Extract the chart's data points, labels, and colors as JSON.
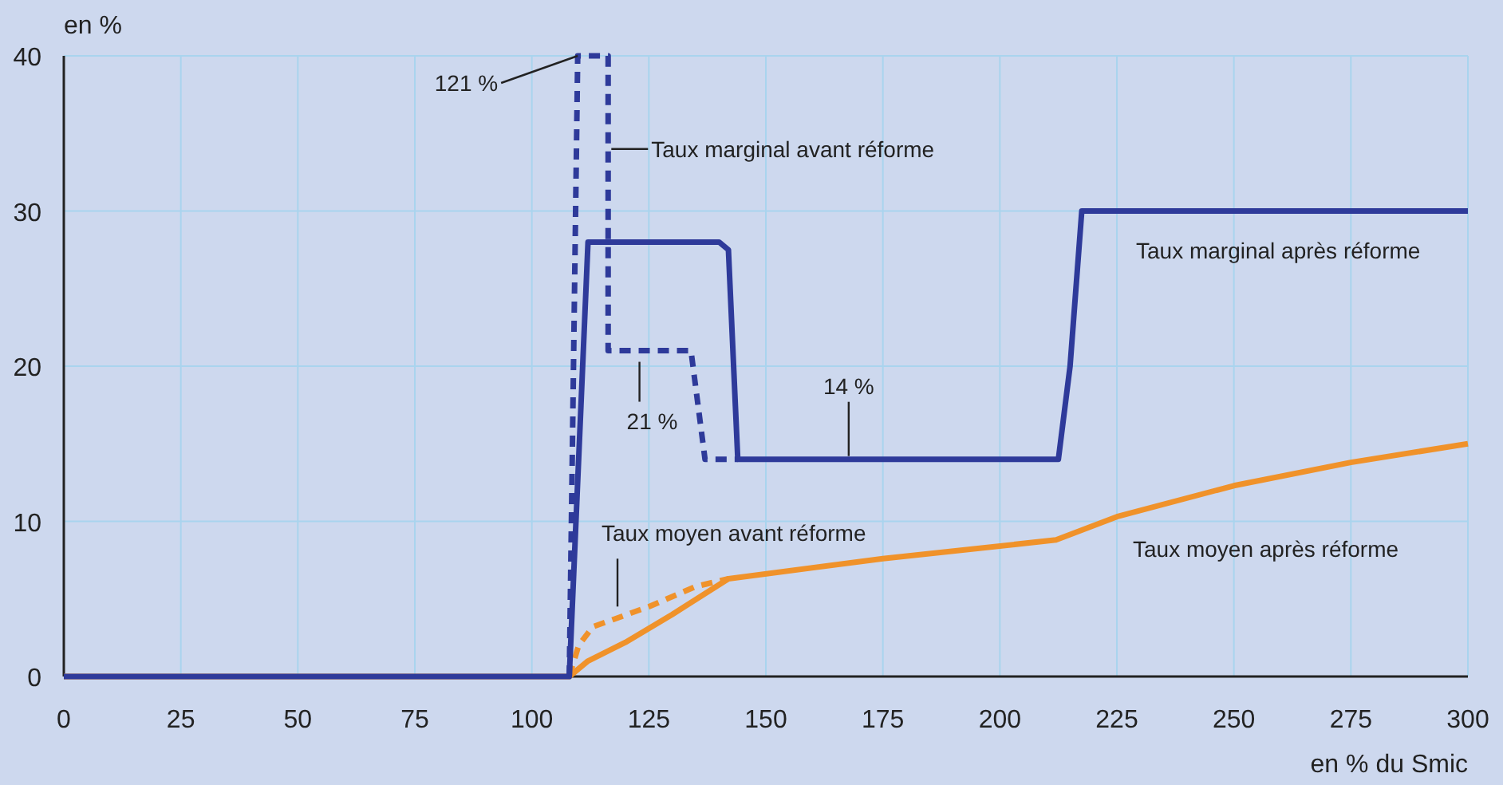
{
  "chart_data": {
    "type": "line",
    "xlabel": "en % du Smic",
    "ylabel": "en %",
    "xlim": [
      0,
      300
    ],
    "ylim": [
      0,
      40
    ],
    "xticks": [
      0,
      25,
      50,
      75,
      100,
      125,
      150,
      175,
      200,
      225,
      250,
      275,
      300
    ],
    "yticks": [
      0,
      10,
      20,
      30,
      40
    ],
    "grid": true,
    "marker": "none",
    "series": [
      {
        "color": "#f0922a",
        "line_style": "solid",
        "x": [
          0,
          108,
          112,
          120,
          130,
          142,
          175,
          212,
          225,
          250,
          275,
          300
        ],
        "values": [
          0,
          0,
          1,
          2.2,
          4,
          6.3,
          7.6,
          8.8,
          10.3,
          12.3,
          13.8,
          15
        ]
      },
      {
        "color": "#f0922a",
        "line_style": "dashed",
        "x": [
          108,
          110,
          113,
          125,
          135,
          142
        ],
        "values": [
          0,
          2,
          3.2,
          4.5,
          5.8,
          6.3
        ]
      },
      {
        "color": "#2e3a9a",
        "line_style": "dashed",
        "x": [
          108,
          109.8,
          116.3,
          116.3,
          134,
          137,
          144
        ],
        "values": [
          0,
          40,
          40,
          21,
          21,
          14,
          14
        ]
      },
      {
        "color": "#2e3a9a",
        "line_style": "solid",
        "x": [
          0,
          108,
          112,
          140,
          142,
          144,
          212.5,
          215,
          217.5,
          300
        ],
        "values": [
          0,
          0,
          28,
          28,
          27.5,
          14,
          14,
          20,
          30,
          30
        ]
      }
    ],
    "annotations": [
      {
        "text": "121 %",
        "x": 109.8,
        "y": 40
      },
      {
        "text": "Taux marginal avant réforme",
        "x": 116.3,
        "y": 34
      },
      "Taux marginal après réforme",
      {
        "text": "21 %",
        "x": 123,
        "y": 21
      },
      {
        "text": "14 %",
        "x": 167.7,
        "y": 14
      },
      {
        "text": "Taux moyen avant réforme",
        "x": 118.3,
        "y": 4.2
      },
      "Taux moyen après réforme"
    ]
  }
}
